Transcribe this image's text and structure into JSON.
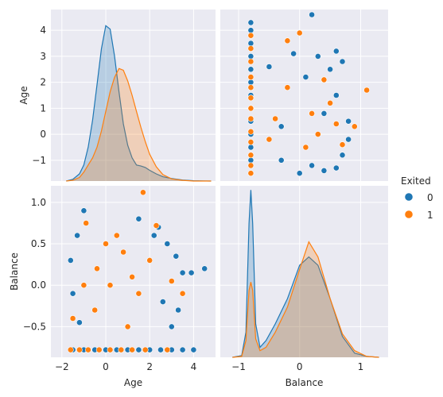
{
  "chart_data": {
    "type": "scatter",
    "kind": "pairplot",
    "variables": [
      "Age",
      "Balance"
    ],
    "hue": "Exited",
    "legend": {
      "title": "Exited",
      "placement": "right",
      "entries": [
        {
          "label": "0",
          "color": "#1F77B4"
        },
        {
          "label": "1",
          "color": "#FF7F0E"
        }
      ]
    },
    "axes": {
      "Age": {
        "range": [
          -2.5,
          5.0
        ],
        "ticks": [
          -2,
          0,
          2,
          4
        ],
        "tick_labels": [
          "−2",
          "0",
          "2",
          "4"
        ],
        "diag_range": [
          -1.8,
          4.8
        ],
        "diag_ticks": [
          -1,
          0,
          1,
          2,
          3,
          4
        ],
        "diag_tick_labels": [
          "−1",
          "0",
          "1",
          "2",
          "3",
          "4"
        ]
      },
      "Balance": {
        "range": [
          -1.3,
          1.45
        ],
        "ticks": [
          -1,
          0,
          1
        ],
        "tick_labels": [
          "−1",
          "0",
          "1"
        ],
        "y_range": [
          -0.87,
          1.2
        ],
        "y_ticks": [
          -0.5,
          0.0,
          0.5,
          1.0
        ],
        "y_tick_labels": [
          "−0.5",
          "0.0",
          "0.5",
          "1.0"
        ]
      }
    },
    "grid": true,
    "panels": [
      {
        "position": "top-left",
        "type": "kde",
        "variable": "Age",
        "series": [
          {
            "name": "0",
            "color": "#1F77B4",
            "x": [
              -1.8,
              -1.5,
              -1.2,
              -1.0,
              -0.8,
              -0.6,
              -0.4,
              -0.2,
              0.0,
              0.2,
              0.4,
              0.6,
              0.8,
              1.0,
              1.2,
              1.4,
              1.6,
              1.8,
              2.0,
              2.3,
              2.6,
              3.0,
              3.5,
              4.0,
              4.8
            ],
            "density": [
              0.0,
              0.05,
              0.2,
              0.45,
              0.95,
              1.7,
              2.7,
              3.7,
              4.35,
              4.25,
              3.5,
              2.5,
              1.6,
              1.0,
              0.65,
              0.45,
              0.42,
              0.38,
              0.3,
              0.2,
              0.12,
              0.07,
              0.03,
              0.01,
              0.0
            ]
          },
          {
            "name": "1",
            "color": "#FF7F0E",
            "x": [
              -1.8,
              -1.5,
              -1.2,
              -1.0,
              -0.8,
              -0.6,
              -0.4,
              -0.2,
              0.0,
              0.2,
              0.4,
              0.6,
              0.8,
              1.0,
              1.2,
              1.4,
              1.6,
              1.8,
              2.0,
              2.3,
              2.6,
              3.0,
              3.5,
              4.0,
              4.8
            ],
            "density": [
              0.0,
              0.02,
              0.1,
              0.25,
              0.45,
              0.65,
              0.95,
              1.4,
              1.95,
              2.5,
              2.9,
              3.15,
              3.1,
              2.8,
              2.4,
              1.95,
              1.5,
              1.1,
              0.75,
              0.4,
              0.18,
              0.06,
              0.02,
              0.0,
              0.0
            ]
          }
        ]
      },
      {
        "position": "top-right",
        "type": "scatter",
        "x": "Balance",
        "y": "Age",
        "series": [
          {
            "name": "0",
            "color": "#1F77B4",
            "points": [
              [
                -0.8,
                -1.5
              ],
              [
                -0.8,
                -1.0
              ],
              [
                -0.8,
                -0.5
              ],
              [
                -0.8,
                0.0
              ],
              [
                -0.8,
                0.5
              ],
              [
                -0.8,
                1.0
              ],
              [
                -0.8,
                1.5
              ],
              [
                -0.8,
                2.0
              ],
              [
                -0.8,
                2.5
              ],
              [
                -0.8,
                3.0
              ],
              [
                -0.8,
                3.5
              ],
              [
                -0.8,
                4.0
              ],
              [
                -0.8,
                4.3
              ],
              [
                0.0,
                -1.5
              ],
              [
                0.2,
                -1.2
              ],
              [
                0.4,
                -1.4
              ],
              [
                0.6,
                -1.3
              ],
              [
                -0.3,
                -1.0
              ],
              [
                0.7,
                -0.8
              ],
              [
                0.8,
                -0.2
              ],
              [
                0.8,
                0.5
              ],
              [
                0.6,
                1.5
              ],
              [
                0.5,
                2.5
              ],
              [
                0.3,
                3.0
              ],
              [
                0.6,
                3.2
              ],
              [
                0.7,
                2.8
              ],
              [
                0.1,
                2.2
              ],
              [
                -0.1,
                3.1
              ],
              [
                0.2,
                4.6
              ],
              [
                -0.3,
                0.3
              ],
              [
                0.4,
                0.8
              ],
              [
                -0.5,
                2.6
              ]
            ]
          },
          {
            "name": "1",
            "color": "#FF7F0E",
            "points": [
              [
                -0.8,
                -1.5
              ],
              [
                -0.8,
                -1.2
              ],
              [
                -0.8,
                -0.8
              ],
              [
                -0.8,
                -0.3
              ],
              [
                -0.8,
                0.1
              ],
              [
                -0.8,
                0.6
              ],
              [
                -0.8,
                1.0
              ],
              [
                -0.8,
                1.4
              ],
              [
                -0.8,
                1.8
              ],
              [
                -0.8,
                2.2
              ],
              [
                -0.8,
                2.8
              ],
              [
                -0.8,
                3.3
              ],
              [
                -0.8,
                3.8
              ],
              [
                -0.2,
                3.6
              ],
              [
                0.0,
                3.9
              ],
              [
                0.3,
                0.0
              ],
              [
                0.2,
                0.8
              ],
              [
                0.5,
                1.2
              ],
              [
                -0.2,
                1.8
              ],
              [
                0.1,
                -0.5
              ],
              [
                0.6,
                0.4
              ],
              [
                1.1,
                1.7
              ],
              [
                0.9,
                0.3
              ],
              [
                -0.4,
                0.6
              ],
              [
                0.4,
                2.1
              ],
              [
                0.7,
                -0.4
              ],
              [
                -0.5,
                -0.2
              ]
            ]
          }
        ]
      },
      {
        "position": "bottom-left",
        "type": "scatter",
        "x": "Age",
        "y": "Balance",
        "series": [
          {
            "name": "0",
            "color": "#1F77B4",
            "points": [
              [
                -1.5,
                -0.78
              ],
              [
                -1.0,
                -0.78
              ],
              [
                -0.5,
                -0.78
              ],
              [
                0.0,
                -0.78
              ],
              [
                0.5,
                -0.78
              ],
              [
                1.0,
                -0.78
              ],
              [
                1.5,
                -0.78
              ],
              [
                2.0,
                -0.78
              ],
              [
                2.5,
                -0.78
              ],
              [
                3.0,
                -0.78
              ],
              [
                3.5,
                -0.78
              ],
              [
                4.0,
                -0.78
              ],
              [
                -1.6,
                0.3
              ],
              [
                -1.5,
                -0.1
              ],
              [
                -1.3,
                0.6
              ],
              [
                -1.2,
                -0.45
              ],
              [
                2.4,
                0.7
              ],
              [
                2.8,
                0.5
              ],
              [
                3.2,
                0.35
              ],
              [
                3.5,
                0.15
              ],
              [
                3.9,
                0.15
              ],
              [
                4.5,
                0.2
              ],
              [
                3.0,
                -0.5
              ],
              [
                2.6,
                -0.2
              ],
              [
                1.5,
                0.8
              ],
              [
                -1.0,
                0.9
              ],
              [
                2.2,
                0.6
              ],
              [
                3.3,
                -0.3
              ]
            ]
          },
          {
            "name": "1",
            "color": "#FF7F0E",
            "points": [
              [
                -1.6,
                -0.78
              ],
              [
                -1.2,
                -0.78
              ],
              [
                -0.8,
                -0.78
              ],
              [
                -0.3,
                -0.78
              ],
              [
                0.2,
                -0.78
              ],
              [
                0.7,
                -0.78
              ],
              [
                1.2,
                -0.78
              ],
              [
                1.8,
                -0.78
              ],
              [
                2.8,
                -0.78
              ],
              [
                1.7,
                1.12
              ],
              [
                -0.9,
                0.75
              ],
              [
                2.3,
                0.72
              ],
              [
                3.0,
                0.05
              ],
              [
                -1.5,
                -0.4
              ],
              [
                1.0,
                -0.5
              ],
              [
                0.2,
                0.0
              ],
              [
                0.8,
                0.4
              ],
              [
                -0.4,
                0.2
              ],
              [
                1.5,
                -0.1
              ],
              [
                0.5,
                0.6
              ],
              [
                -1.0,
                0.0
              ],
              [
                2.0,
                0.3
              ],
              [
                -0.5,
                -0.3
              ],
              [
                1.2,
                0.1
              ],
              [
                0.0,
                0.5
              ],
              [
                3.5,
                -0.1
              ]
            ]
          }
        ]
      },
      {
        "position": "bottom-right",
        "type": "kde",
        "variable": "Balance",
        "series": [
          {
            "name": "0",
            "color": "#1F77B4",
            "x": [
              -1.1,
              -0.95,
              -0.88,
              -0.83,
              -0.8,
              -0.77,
              -0.72,
              -0.65,
              -0.55,
              -0.4,
              -0.2,
              0.0,
              0.15,
              0.3,
              0.5,
              0.7,
              0.9,
              1.1,
              1.3
            ],
            "density": [
              0.0,
              0.02,
              0.3,
              1.6,
              2.0,
              1.6,
              0.4,
              0.12,
              0.2,
              0.4,
              0.7,
              1.1,
              1.2,
              1.1,
              0.7,
              0.25,
              0.05,
              0.01,
              0.0
            ]
          },
          {
            "name": "1",
            "color": "#FF7F0E",
            "x": [
              -1.1,
              -0.95,
              -0.88,
              -0.83,
              -0.8,
              -0.77,
              -0.72,
              -0.65,
              -0.55,
              -0.4,
              -0.2,
              0.0,
              0.15,
              0.3,
              0.5,
              0.7,
              0.9,
              1.1,
              1.3
            ],
            "density": [
              0.0,
              0.01,
              0.2,
              0.8,
              0.9,
              0.8,
              0.22,
              0.08,
              0.12,
              0.3,
              0.6,
              1.05,
              1.38,
              1.2,
              0.7,
              0.28,
              0.08,
              0.01,
              0.0
            ]
          }
        ]
      }
    ]
  }
}
